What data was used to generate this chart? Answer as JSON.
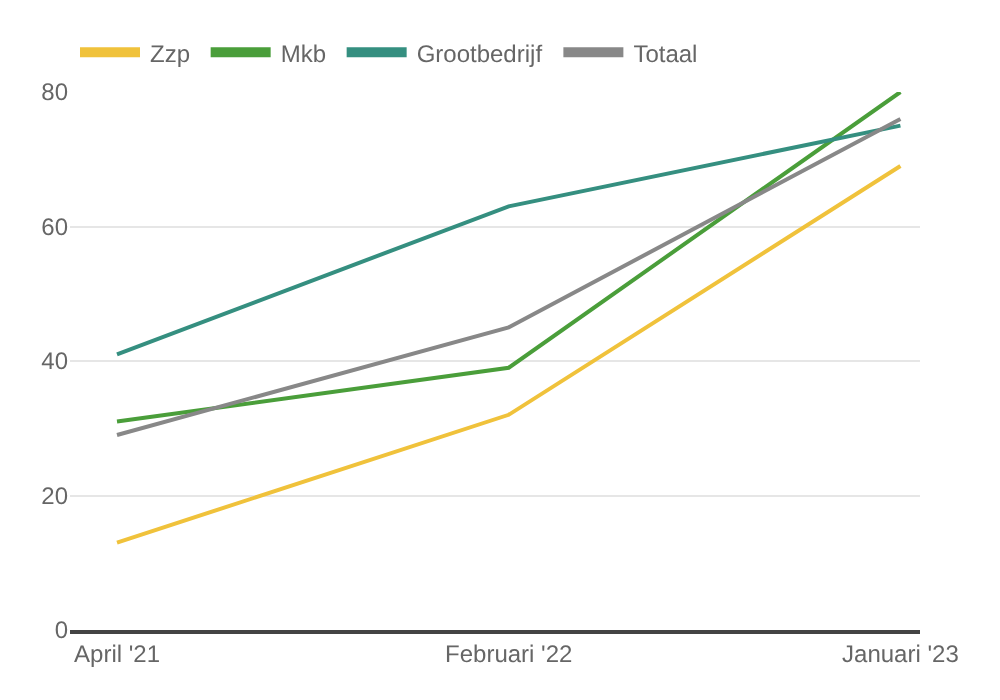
{
  "chart_data": {
    "type": "line",
    "categories": [
      "April '21",
      "Februari '22",
      "Januari '23"
    ],
    "series": [
      {
        "name": "Zzp",
        "color": "#f0c23b",
        "values": [
          13,
          32,
          69
        ]
      },
      {
        "name": "Mkb",
        "color": "#4a9e3a",
        "values": [
          31,
          39,
          80
        ]
      },
      {
        "name": "Grootbedrijf",
        "color": "#358f80",
        "values": [
          41,
          63,
          75
        ]
      },
      {
        "name": "Totaal",
        "color": "#888888",
        "values": [
          29,
          45,
          76
        ]
      }
    ],
    "ylim": [
      0,
      80
    ],
    "yticks": [
      0,
      20,
      40,
      60,
      80
    ],
    "grid": "y",
    "legend": "top left",
    "marker": "none",
    "line_style": "solid"
  }
}
